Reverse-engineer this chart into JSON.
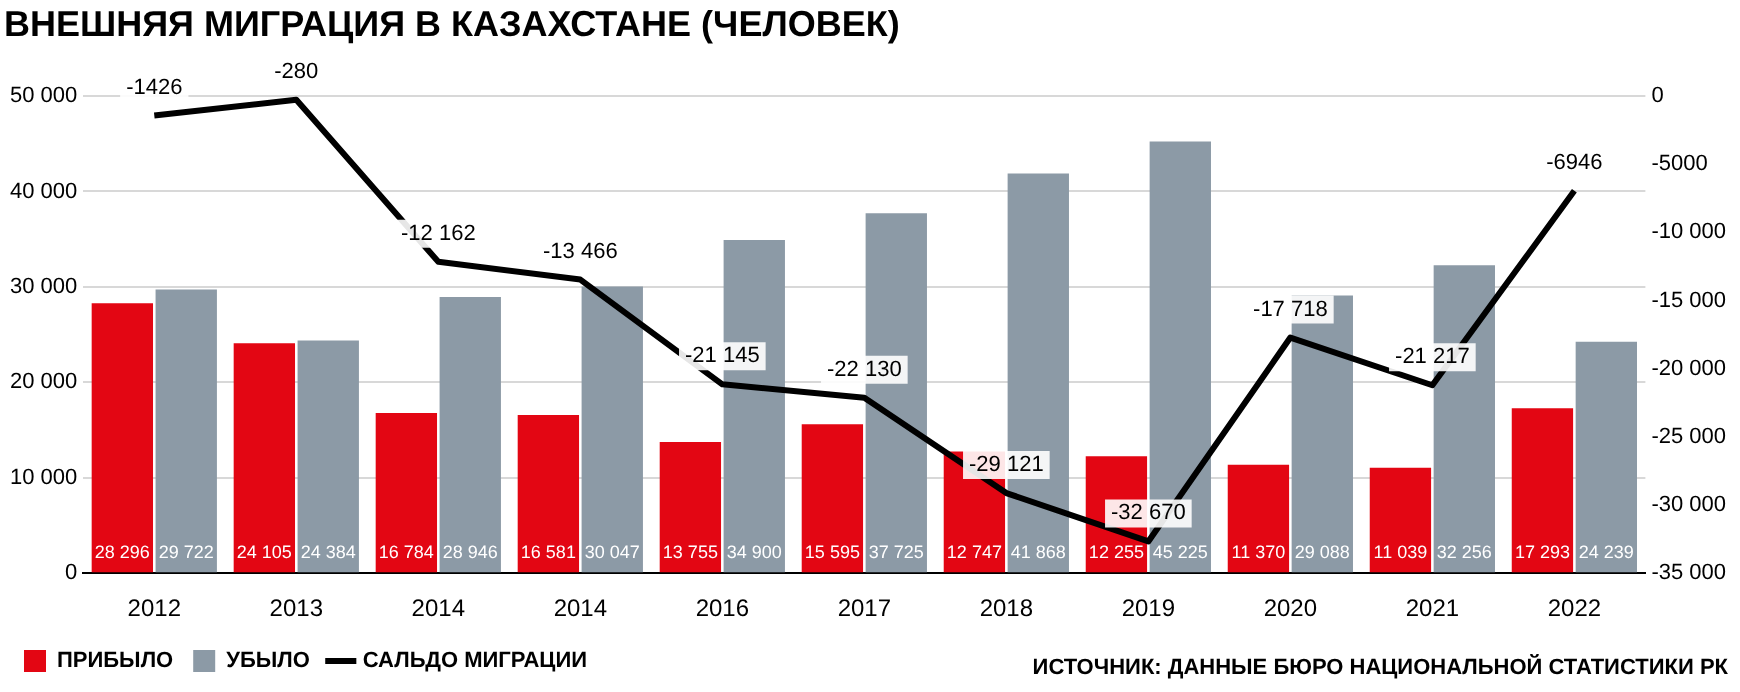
{
  "chart_data": {
    "type": "bar",
    "title": "ВНЕШНЯЯ МИГРАЦИЯ В КАЗАХСТАНЕ (ЧЕЛОВЕК)",
    "categories": [
      "2012",
      "2013",
      "2014",
      "2014",
      "2016",
      "2017",
      "2018",
      "2019",
      "2020",
      "2021",
      "2022"
    ],
    "series": [
      {
        "name": "ПРИБЫЛО",
        "color": "#e30613",
        "values": [
          28296,
          24105,
          16784,
          16581,
          13755,
          15595,
          12747,
          12255,
          11370,
          11039,
          17293
        ],
        "value_labels": [
          "28 296",
          "24 105",
          "16 784",
          "16 581",
          "13 755",
          "15 595",
          "12 747",
          "12 255",
          "11 370",
          "11 039",
          "17 293"
        ]
      },
      {
        "name": "УБЫЛО",
        "color": "#8c9aa6",
        "values": [
          29722,
          24384,
          28946,
          30047,
          34900,
          37725,
          41868,
          45225,
          29088,
          32256,
          24239
        ],
        "value_labels": [
          "29 722",
          "24 384",
          "28 946",
          "30 047",
          "34 900",
          "37 725",
          "41 868",
          "45 225",
          "29 088",
          "32 256",
          "24 239"
        ]
      },
      {
        "name": "САЛЬДО МИГРАЦИИ",
        "type": "line",
        "axis": "y2",
        "color": "#000000",
        "values": [
          -1426,
          -280,
          -12162,
          -13466,
          -21145,
          -22130,
          -29121,
          -32670,
          -17718,
          -21217,
          -6946
        ],
        "value_labels": [
          "-1426",
          "-280",
          "-12 162",
          "-13 466",
          "-21 145",
          "-22 130",
          "-29 121",
          "-32 670",
          "-17 718",
          "-21 217",
          "-6946"
        ]
      }
    ],
    "ylim": [
      0,
      50000
    ],
    "yticks": [
      0,
      {
        "value": 10000,
        "label": "10 000"
      },
      {
        "value": 20000,
        "label": "20 000"
      },
      {
        "value": 30000,
        "label": "30 000"
      },
      {
        "value": 40000,
        "label": "40 000"
      },
      {
        "value": 50000,
        "label": "50 000"
      }
    ],
    "y2lim": [
      -35000,
      0
    ],
    "y2ticks": [
      0,
      -5000,
      {
        "value": -10000,
        "label": "-10 000"
      },
      {
        "value": -15000,
        "label": "-15 000"
      },
      {
        "value": -20000,
        "label": "-20 000"
      },
      {
        "value": -25000,
        "label": "-25 000"
      },
      {
        "value": -30000,
        "label": "-30 000"
      },
      {
        "value": -35000,
        "label": "-35 000"
      }
    ],
    "grid": "y",
    "legend": "bottom left",
    "marker": "none",
    "line_style": "solid",
    "annotations": [
      "ИСТОЧНИК: ДАННЫЕ БЮРО НАЦИОНАЛЬНОЙ СТАТИСТИКИ РК"
    ]
  }
}
